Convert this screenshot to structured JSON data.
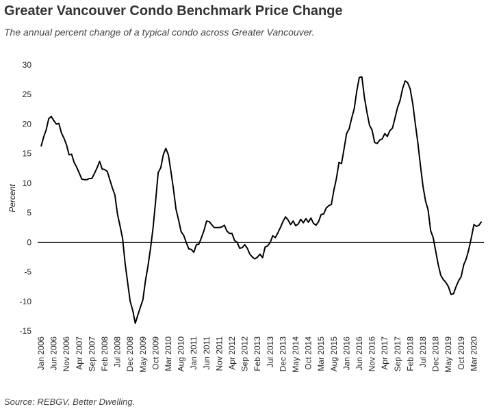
{
  "chart_data": {
    "type": "line",
    "title": "Greater Vancouver Condo Benchmark Price Change",
    "subtitle": "The annual percent change of a typical condo across Greater Vancouver.",
    "y_label": "Percent",
    "source": "Source: REBGV, Better Dwelling.",
    "categories": [
      "Jan 2006",
      null,
      null,
      null,
      null,
      "Jun 2006",
      null,
      null,
      null,
      null,
      "Nov 2006",
      null,
      null,
      null,
      null,
      "Apr 2007",
      null,
      null,
      null,
      null,
      "Sep 2007",
      null,
      null,
      null,
      null,
      "Feb 2008",
      null,
      null,
      null,
      null,
      "Jul 2008",
      null,
      null,
      null,
      null,
      "Dec 2008",
      null,
      null,
      null,
      null,
      "May 2009",
      null,
      null,
      null,
      null,
      "Oct 2009",
      null,
      null,
      null,
      null,
      "Mar 2010",
      null,
      null,
      null,
      null,
      "Aug 2010",
      null,
      null,
      null,
      null,
      "Jan 2011",
      null,
      null,
      null,
      null,
      "Jun 2011",
      null,
      null,
      null,
      null,
      "Nov 2011",
      null,
      null,
      null,
      null,
      "Apr 2012",
      null,
      null,
      null,
      null,
      "Sep 2012",
      null,
      null,
      null,
      null,
      "Feb 2013",
      null,
      null,
      null,
      null,
      "Jul 2013",
      null,
      null,
      null,
      null,
      "Dec 2013",
      null,
      null,
      null,
      null,
      "May 2014",
      null,
      null,
      null,
      null,
      "Oct 2014",
      null,
      null,
      null,
      null,
      "Mar 2015",
      null,
      null,
      null,
      null,
      "Aug 2015",
      null,
      null,
      null,
      null,
      "Jan 2016",
      null,
      null,
      null,
      null,
      "Jun 2016",
      null,
      null,
      null,
      null,
      "Nov 2016",
      null,
      null,
      null,
      null,
      "Apr 2017",
      null,
      null,
      null,
      null,
      "Sep 2017",
      null,
      null,
      null,
      null,
      "Feb 2018",
      null,
      null,
      null,
      null,
      "Jul 2018",
      null,
      null,
      null,
      null,
      "Dec 2018",
      null,
      null,
      null,
      null,
      "May 2019",
      null,
      null,
      null,
      null,
      "Oct 2019",
      null,
      null,
      null,
      null,
      "Mar 2020",
      null,
      null,
      null
    ],
    "values": [
      16.2,
      17.8,
      19,
      20.9,
      21.3,
      20.6,
      20,
      20.1,
      18.5,
      17.6,
      16.5,
      14.8,
      14.9,
      13.5,
      12.7,
      11.7,
      10.7,
      10.6,
      10.6,
      10.8,
      10.8,
      11.7,
      12.6,
      13.7,
      12.4,
      12.3,
      12,
      10.6,
      9.2,
      8,
      4.8,
      2.8,
      0.7,
      -3.5,
      -6.8,
      -10,
      -11.5,
      -13.7,
      -12.3,
      -11,
      -9.7,
      -6.5,
      -4,
      -1,
      2.5,
      7,
      11.8,
      12.6,
      14.8,
      15.9,
      14.8,
      12,
      9,
      5.6,
      3.8,
      1.8,
      1.2,
      0,
      -1.1,
      -1.2,
      -1.7,
      -0.4,
      -0.3,
      0.8,
      2,
      3.6,
      3.5,
      3,
      2.5,
      2.5,
      2.5,
      2.6,
      2.9,
      1.9,
      1.5,
      1.5,
      0.3,
      0,
      -1,
      -0.9,
      -0.4,
      -1,
      -2,
      -2.5,
      -2.8,
      -2.5,
      -2,
      -2.6,
      -0.8,
      -0.6,
      0,
      1.1,
      0.8,
      1.6,
      2.5,
      3.5,
      4.3,
      3.8,
      3,
      3.6,
      2.8,
      3.1,
      3.9,
      3.3,
      4,
      3.4,
      4.1,
      3.2,
      2.9,
      3.5,
      4.7,
      4.8,
      5.8,
      6.2,
      6.4,
      8.8,
      10.8,
      13.5,
      13.3,
      15.8,
      18.4,
      19.2,
      21,
      22.6,
      25.6,
      27.9,
      28,
      24.5,
      22,
      19.8,
      19,
      16.9,
      16.7,
      17.3,
      17.5,
      18.4,
      17.9,
      18.9,
      19.3,
      21,
      22.8,
      24,
      26,
      27.3,
      27,
      25.9,
      23.4,
      20,
      16.8,
      13,
      9.5,
      7,
      5.5,
      2,
      0.8,
      -1.5,
      -3.8,
      -5.6,
      -6.3,
      -6.8,
      -7.5,
      -8.8,
      -8.7,
      -7.5,
      -6.5,
      -5.8,
      -3.8,
      -2.8,
      -1.2,
      0.8,
      3,
      2.7,
      2.9,
      3.5
    ],
    "color": "#000000",
    "ylim": [
      -15,
      30
    ],
    "yticks": [
      -15,
      -10,
      -5,
      0,
      5,
      10,
      15,
      20,
      25,
      30
    ]
  }
}
